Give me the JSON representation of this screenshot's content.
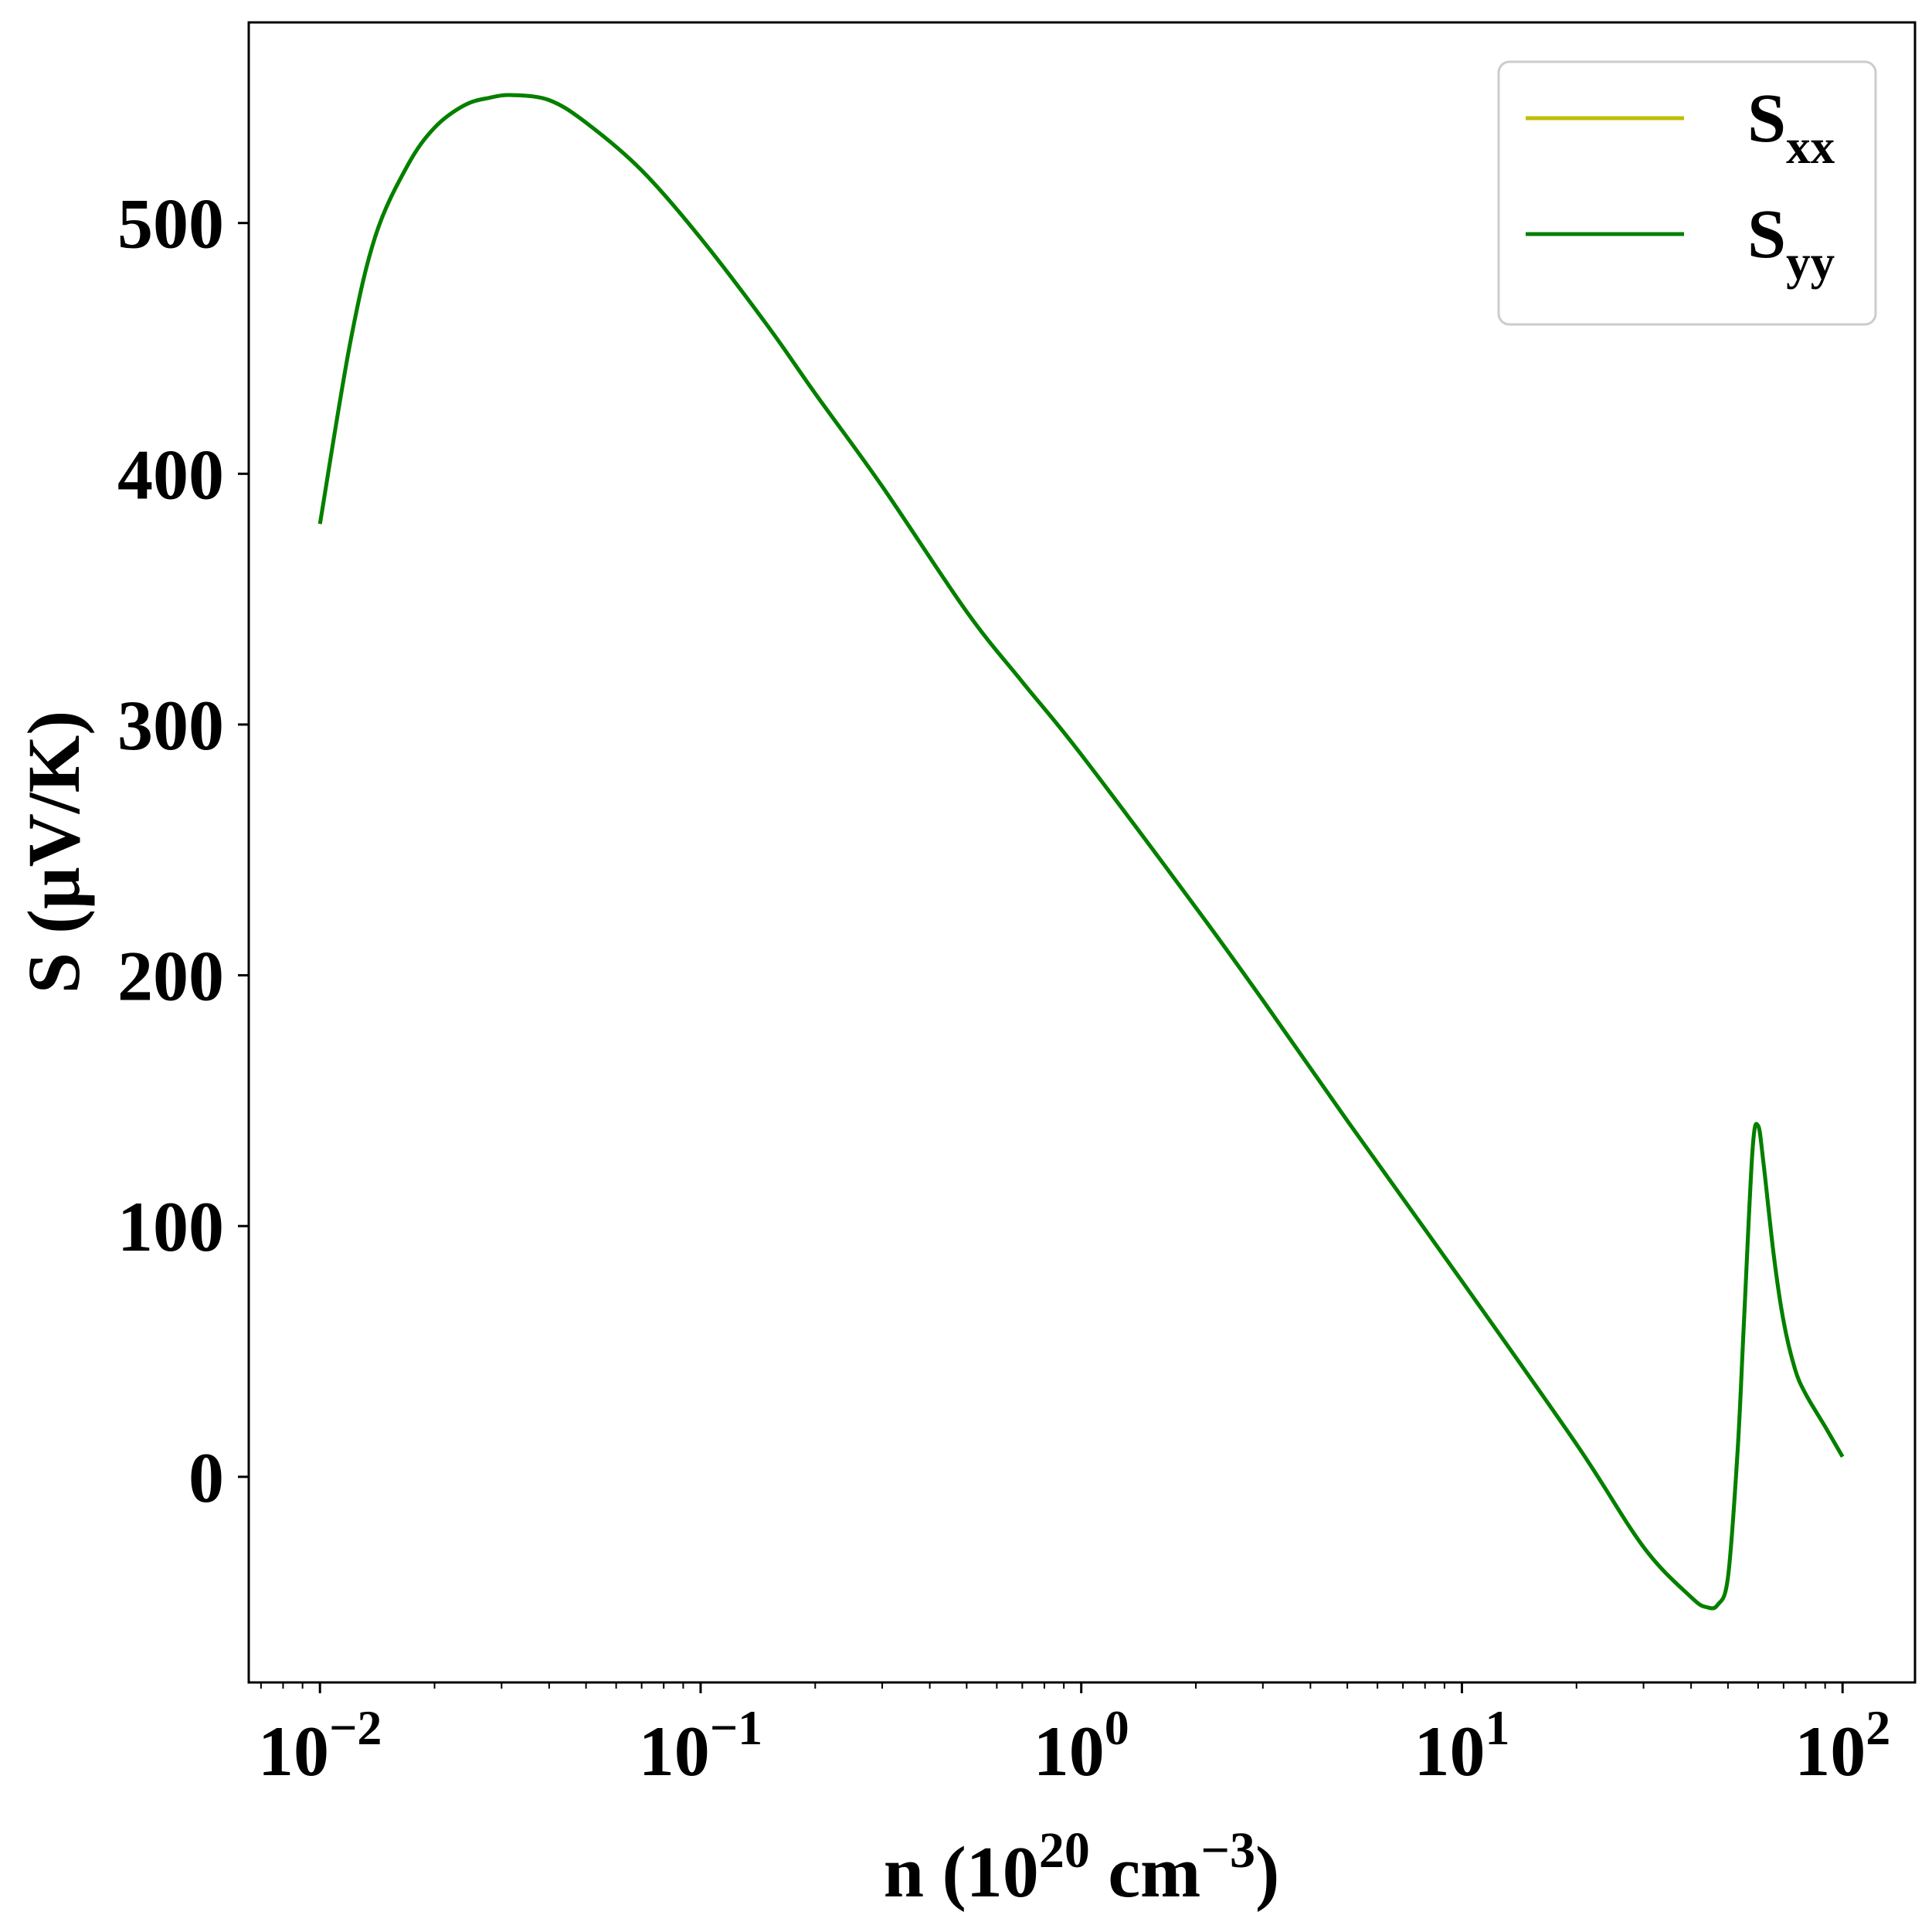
{
  "chart_data": {
    "type": "line",
    "xscale": "log",
    "xlim": [
      0.0065,
      155
    ],
    "ylim": [
      -82,
      580
    ],
    "xlabel": {
      "base": "n (10",
      "sup1": "20",
      "mid": " cm",
      "sup2": "−3",
      "end": ")"
    },
    "ylabel": "S (μV/K)",
    "x_ticks": [
      {
        "value": 0.01,
        "base": "10",
        "exp": "−2"
      },
      {
        "value": 0.1,
        "base": "10",
        "exp": "−1"
      },
      {
        "value": 1,
        "base": "10",
        "exp": "0"
      },
      {
        "value": 10,
        "base": "10",
        "exp": "1"
      },
      {
        "value": 100,
        "base": "10",
        "exp": "2"
      }
    ],
    "y_ticks": [
      {
        "value": 0,
        "label": "0"
      },
      {
        "value": 100,
        "label": "100"
      },
      {
        "value": 200,
        "label": "200"
      },
      {
        "value": 300,
        "label": "300"
      },
      {
        "value": 400,
        "label": "400"
      },
      {
        "value": 500,
        "label": "500"
      }
    ],
    "grid": false,
    "legend_position": "top-right",
    "series": [
      {
        "name": "S",
        "subscript": "xx",
        "color": "#bfbf00",
        "x": [
          0.01,
          0.012,
          0.014,
          0.017,
          0.02,
          0.024,
          0.028,
          0.032,
          0.04,
          0.05,
          0.07,
          0.1,
          0.15,
          0.2,
          0.3,
          0.5,
          0.7,
          1,
          2,
          3,
          5,
          10,
          20,
          30,
          40,
          44,
          47,
          50,
          53,
          55,
          58,
          60,
          62,
          66,
          70,
          75,
          80,
          90,
          100
        ],
        "y": [
          380,
          452,
          495,
          523,
          538,
          547,
          550,
          551,
          549,
          540,
          521,
          494,
          459,
          432,
          395,
          345,
          317,
          288,
          227,
          190,
          142,
          78,
          13,
          -28,
          -48,
          -52,
          -51,
          -40,
          10,
          60,
          130,
          140,
          125,
          88,
          62,
          43,
          33,
          20,
          8
        ]
      },
      {
        "name": "S",
        "subscript": "yy",
        "color": "#008000",
        "x": [
          0.01,
          0.012,
          0.014,
          0.017,
          0.02,
          0.024,
          0.028,
          0.032,
          0.04,
          0.05,
          0.07,
          0.1,
          0.15,
          0.2,
          0.3,
          0.5,
          0.7,
          1,
          2,
          3,
          5,
          10,
          20,
          30,
          40,
          44,
          47,
          50,
          53,
          55,
          58,
          60,
          62,
          66,
          70,
          75,
          80,
          90,
          100
        ],
        "y": [
          380,
          452,
          495,
          523,
          538,
          547,
          550,
          551,
          549,
          540,
          521,
          494,
          459,
          432,
          395,
          345,
          317,
          288,
          227,
          190,
          142,
          78,
          13,
          -28,
          -48,
          -52,
          -51,
          -40,
          10,
          60,
          130,
          140,
          125,
          88,
          62,
          43,
          33,
          20,
          8
        ]
      }
    ]
  }
}
